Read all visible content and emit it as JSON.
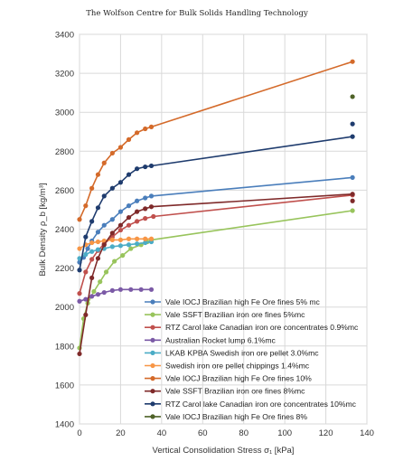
{
  "header": {
    "text": "The Wolfson Centre for Bulk Solids Handling Technology"
  },
  "chart_data": {
    "type": "line",
    "title": "",
    "xlabel": "Vertical Consolidation Stress σ₁ [kPa]",
    "ylabel": "Bulk Density ρ_b [kg/m³]",
    "xlim": [
      0,
      140
    ],
    "ylim": [
      1400,
      3400
    ],
    "xticks": [
      0,
      20,
      40,
      60,
      80,
      100,
      120,
      140
    ],
    "yticks": [
      1400,
      1600,
      1800,
      2000,
      2200,
      2400,
      2600,
      2800,
      3000,
      3200,
      3400
    ],
    "grid": true,
    "legend_position": "lower-right",
    "series": [
      {
        "name": "Vale IOCJ Brazilian high Fe Ore fines 5% mc",
        "color": "#4a7ebb",
        "x": [
          0,
          2,
          4,
          6,
          9,
          12,
          16,
          20,
          24,
          28,
          32,
          35,
          133
        ],
        "y": [
          2230,
          2255,
          2300,
          2340,
          2385,
          2420,
          2450,
          2490,
          2520,
          2545,
          2560,
          2570,
          2665
        ]
      },
      {
        "name": "Vale SSFT Brazilian iron ore fines 5%mc",
        "color": "#98c45c",
        "x": [
          0,
          2,
          4,
          7,
          10,
          13,
          17,
          21,
          25,
          30,
          33,
          35,
          133
        ],
        "y": [
          1790,
          1940,
          2020,
          2080,
          2130,
          2180,
          2235,
          2265,
          2300,
          2320,
          2335,
          2345,
          2495
        ]
      },
      {
        "name": "RTZ Carol lake Canadian iron ore concentrates 0.9%mc",
        "color": "#c0504d",
        "x": [
          0,
          3,
          6,
          9,
          12,
          16,
          20,
          24,
          28,
          32,
          36,
          133
        ],
        "y": [
          2070,
          2180,
          2245,
          2290,
          2325,
          2360,
          2395,
          2420,
          2440,
          2455,
          2465,
          2575
        ]
      },
      {
        "name": "Australian Rocket lump 6.1%mc",
        "color": "#7b5aa6",
        "x": [
          0,
          3,
          6,
          9,
          12,
          16,
          20,
          25,
          30,
          35
        ],
        "y": [
          2030,
          2040,
          2055,
          2065,
          2075,
          2085,
          2090,
          2090,
          2090,
          2090
        ]
      },
      {
        "name": "LKAB KPBA Swedish iron ore pellet 3.0%mc",
        "color": "#4bacc6",
        "x": [
          0,
          3,
          6,
          9,
          12,
          16,
          20,
          24,
          28,
          32,
          35
        ],
        "y": [
          2250,
          2270,
          2285,
          2295,
          2300,
          2310,
          2315,
          2320,
          2325,
          2330,
          2335
        ]
      },
      {
        "name": "Swedish iron ore pellet chippings 1.4%mc",
        "color": "#f79646",
        "x": [
          0,
          3,
          6,
          9,
          12,
          16,
          20,
          24,
          28,
          32,
          35
        ],
        "y": [
          2300,
          2320,
          2330,
          2335,
          2340,
          2345,
          2345,
          2350,
          2350,
          2350,
          2350
        ]
      },
      {
        "name": "Vale IOCJ Brazilian high Fe Ore fines 10%",
        "color": "#d46a2a",
        "x": [
          0,
          3,
          6,
          9,
          12,
          16,
          20,
          24,
          28,
          32,
          35,
          133
        ],
        "y": [
          2450,
          2520,
          2610,
          2680,
          2740,
          2790,
          2820,
          2860,
          2895,
          2915,
          2925,
          3260
        ]
      },
      {
        "name": "Vale SSFT Brazilian iron ore fines 8%mc",
        "color": "#7f2a2a",
        "x": [
          0,
          3,
          6,
          9,
          12,
          16,
          20,
          24,
          28,
          32,
          35,
          133
        ],
        "y": [
          1760,
          1960,
          2150,
          2250,
          2320,
          2380,
          2420,
          2460,
          2490,
          2505,
          2515,
          2580
        ]
      },
      {
        "name": "RTZ Carol lake Canadian iron ore concentrates 10%mc",
        "color": "#1f3c6e",
        "x": [
          0,
          3,
          6,
          9,
          12,
          16,
          20,
          24,
          28,
          32,
          35,
          133
        ],
        "y": [
          2190,
          2360,
          2440,
          2510,
          2570,
          2610,
          2640,
          2680,
          2710,
          2720,
          2725,
          2875
        ]
      },
      {
        "name": "Vale IOCJ Brazilian high Fe Ore fines 8%",
        "color": "#4f6228",
        "x": [
          133
        ],
        "y": [
          3080
        ]
      }
    ],
    "extra_points": [
      {
        "series_index": 8,
        "x": 133,
        "y": 2940
      },
      {
        "series_index": 7,
        "x": 133,
        "y": 2545
      }
    ]
  }
}
